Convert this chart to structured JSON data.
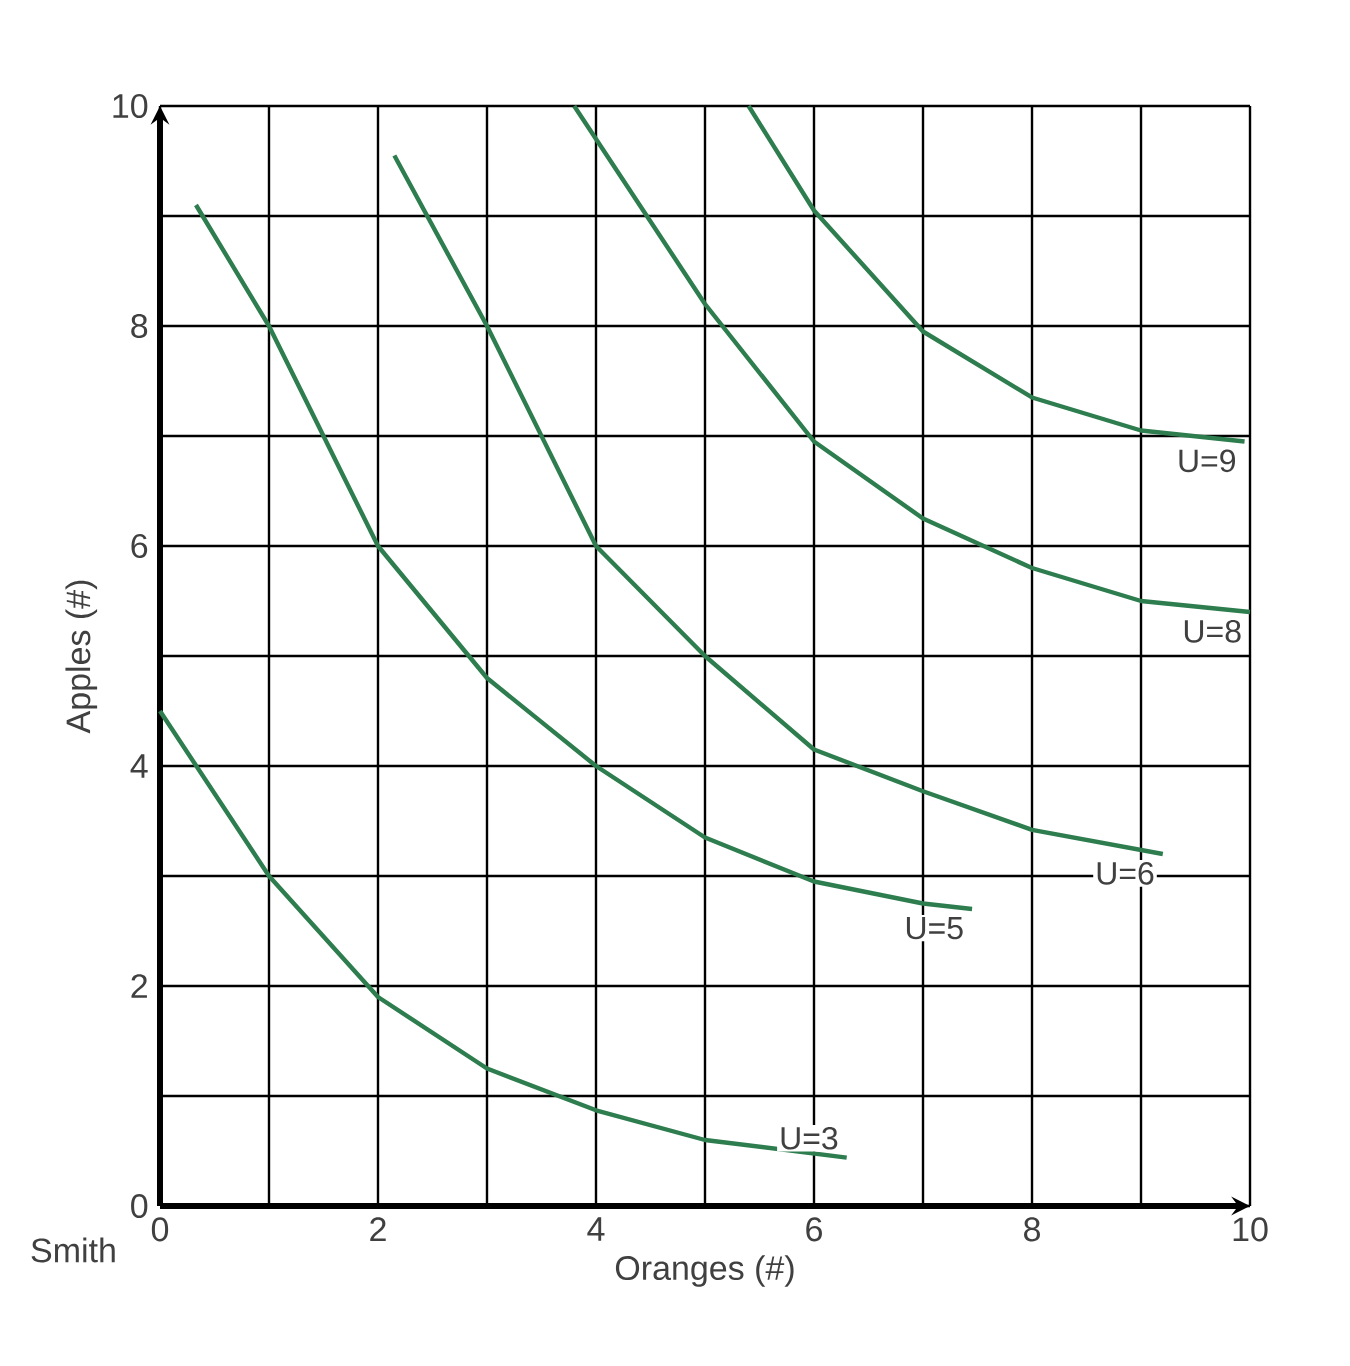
{
  "chart_data": {
    "type": "line",
    "xlabel": "Oranges (#)",
    "ylabel": "Apples (#)",
    "xlim": [
      0,
      10
    ],
    "ylim": [
      0,
      10
    ],
    "xticks": [
      0,
      {
        "value": 1,
        "label": null
      },
      2,
      {
        "value": 3,
        "label": null
      },
      4,
      {
        "value": 5,
        "label": null
      },
      6,
      {
        "value": 7,
        "label": null
      },
      8,
      {
        "value": 9,
        "label": null
      },
      10
    ],
    "yticks": [
      0,
      {
        "value": 1,
        "label": null
      },
      2,
      {
        "value": 3,
        "label": null
      },
      4,
      {
        "value": 5,
        "label": null
      },
      6,
      {
        "value": 7,
        "label": null
      },
      8,
      {
        "value": 9,
        "label": null
      },
      10
    ],
    "grid": true,
    "legend": false,
    "marker": "none",
    "line_style": "solid",
    "annotations": [
      "Smith"
    ],
    "series": [
      {
        "name": "U=3",
        "color": "#2e7d4f",
        "x": [
          0,
          1,
          2,
          3,
          4,
          5,
          6.3
        ],
        "values": [
          4.5,
          3,
          1.9,
          1.25,
          0.87,
          0.6,
          0.44
        ]
      },
      {
        "name": "U=5",
        "color": "#2e7d4f",
        "x": [
          0.33,
          1,
          2,
          3,
          4,
          5,
          6,
          7,
          7.45
        ],
        "values": [
          9.1,
          8,
          6,
          4.8,
          4,
          3.35,
          2.95,
          2.75,
          2.7
        ]
      },
      {
        "name": "U=6",
        "color": "#2e7d4f",
        "x": [
          2.15,
          3,
          4,
          5,
          6,
          7,
          8,
          9.2
        ],
        "values": [
          9.55,
          8,
          6,
          5,
          4.15,
          3.77,
          3.42,
          3.2
        ]
      },
      {
        "name": "U=8",
        "color": "#2e7d4f",
        "x": [
          3.8,
          5,
          6,
          7,
          8,
          9,
          10
        ],
        "values": [
          10,
          8.2,
          6.95,
          6.25,
          5.8,
          5.5,
          5.4
        ]
      },
      {
        "name": "U=9",
        "color": "#2e7d4f",
        "x": [
          5.4,
          6,
          7,
          8,
          9,
          9.95
        ],
        "values": [
          10,
          9.05,
          7.95,
          7.35,
          7.05,
          6.95
        ]
      }
    ]
  }
}
